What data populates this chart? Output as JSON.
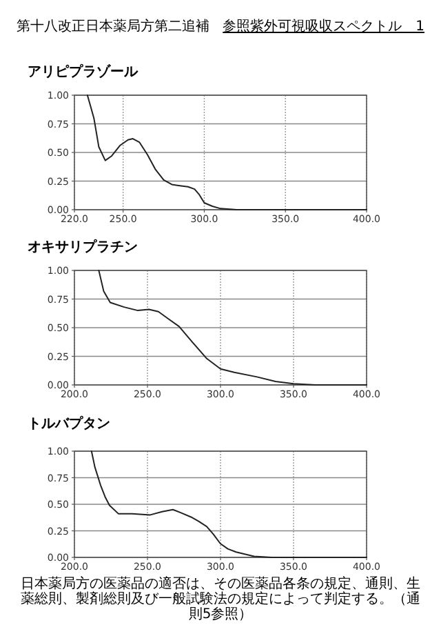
{
  "chart_data": [
    {
      "type": "line",
      "title": "アリピプラゾール",
      "annotations": [
        "第十八改正日本薬局方第二追補",
        "参照紫外可視吸収スペクトル　1"
      ],
      "x": [
        228,
        230,
        232,
        235,
        239,
        243,
        248,
        253,
        256,
        260,
        265,
        270,
        275,
        280,
        285,
        290,
        294,
        297,
        300,
        305,
        310,
        320,
        340,
        400
      ],
      "series": [
        {
          "color": "#222222",
          "values": [
            1.0,
            0.9,
            0.8,
            0.55,
            0.43,
            0.47,
            0.56,
            0.61,
            0.62,
            0.59,
            0.48,
            0.35,
            0.26,
            0.22,
            0.21,
            0.2,
            0.18,
            0.13,
            0.06,
            0.03,
            0.01,
            0.0,
            0.0,
            0.0
          ]
        }
      ],
      "xlim": [
        220,
        400
      ],
      "ylim": [
        0,
        1
      ],
      "xticks": [
        {
          "value": 220,
          "label": "220.0"
        },
        {
          "value": 250,
          "label": "250.0"
        },
        {
          "value": 300,
          "label": "300.0"
        },
        {
          "value": 350,
          "label": "350.0"
        },
        {
          "value": 400,
          "label": "400.0"
        }
      ],
      "yticks": [
        {
          "value": 0,
          "label": "0.00"
        },
        {
          "value": 0.25,
          "label": "0.25"
        },
        {
          "value": 0.5,
          "label": "0.50"
        },
        {
          "value": 0.75,
          "label": "0.75"
        },
        {
          "value": 1,
          "label": "1.00"
        }
      ],
      "grid": true
    },
    {
      "type": "line",
      "title": "オキサリプラチン",
      "x": [
        216.7,
        220,
        224.5,
        234,
        243.4,
        251,
        257.5,
        264,
        271.7,
        281,
        290.6,
        300,
        309.4,
        325,
        337.7,
        350,
        365,
        400
      ],
      "series": [
        {
          "color": "#222222",
          "values": [
            1.0,
            0.82,
            0.72,
            0.68,
            0.65,
            0.66,
            0.64,
            0.58,
            0.51,
            0.37,
            0.23,
            0.14,
            0.11,
            0.07,
            0.03,
            0.01,
            0.0,
            0.0
          ]
        }
      ],
      "xlim": [
        200,
        400
      ],
      "ylim": [
        0,
        1
      ],
      "xticks": [
        {
          "value": 200,
          "label": "200.0"
        },
        {
          "value": 250,
          "label": "250.0"
        },
        {
          "value": 300,
          "label": "300.0"
        },
        {
          "value": 350,
          "label": "350.0"
        },
        {
          "value": 400,
          "label": "400.0"
        }
      ],
      "yticks": [
        {
          "value": 0,
          "label": "0.00"
        },
        {
          "value": 0.25,
          "label": "0.25"
        },
        {
          "value": 0.5,
          "label": "0.50"
        },
        {
          "value": 0.75,
          "label": "0.75"
        },
        {
          "value": 1,
          "label": "1.00"
        }
      ],
      "grid": true
    },
    {
      "type": "line",
      "title": "トルバプタン",
      "annotations": [
        "日本薬局方の医薬品の適否は、その医薬品各条の規定、通則、生薬総則、製剤総則及び一般試験法の規定によって判定する。（通則5参照）"
      ],
      "x": [
        211.7,
        214,
        217.9,
        221,
        224,
        230.2,
        239.5,
        251.9,
        260,
        267.4,
        273,
        279.8,
        285,
        290.6,
        295,
        299.9,
        305,
        310.7,
        323,
        335,
        400
      ],
      "series": [
        {
          "color": "#222222",
          "values": [
            1.0,
            0.85,
            0.68,
            0.57,
            0.49,
            0.41,
            0.41,
            0.4,
            0.43,
            0.45,
            0.42,
            0.38,
            0.34,
            0.29,
            0.22,
            0.13,
            0.08,
            0.05,
            0.01,
            0.0,
            0.0
          ]
        }
      ],
      "xlim": [
        200,
        400
      ],
      "ylim": [
        0,
        1
      ],
      "xticks": [
        {
          "value": 200,
          "label": "200.0"
        },
        {
          "value": 250,
          "label": "250.0"
        },
        {
          "value": 300,
          "label": "300.0"
        },
        {
          "value": 350,
          "label": "350.0"
        },
        {
          "value": 400,
          "label": "400.0"
        }
      ],
      "yticks": [
        {
          "value": 0,
          "label": "0.00"
        },
        {
          "value": 0.25,
          "label": "0.25"
        },
        {
          "value": 0.5,
          "label": "0.50"
        },
        {
          "value": 0.75,
          "label": "0.75"
        },
        {
          "value": 1,
          "label": "1.00"
        }
      ],
      "grid": true
    }
  ]
}
